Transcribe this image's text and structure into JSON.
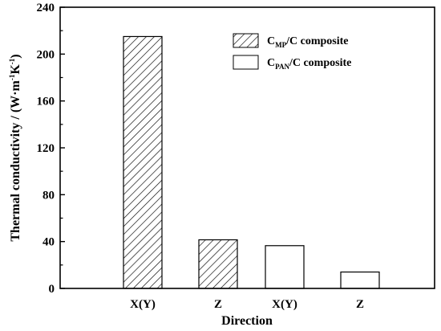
{
  "chart_data": {
    "type": "bar",
    "categories": [
      "X(Y)",
      "Z",
      "X(Y)",
      "Z"
    ],
    "values": [
      215,
      41.5,
      36.5,
      14
    ],
    "bar_series": [
      0,
      0,
      1,
      1
    ],
    "series": [
      {
        "name_main": "C",
        "name_sub": "MP",
        "name_rest": "/C composite",
        "fill": "hatch"
      },
      {
        "name_main": "C",
        "name_sub": "PAN",
        "name_rest": "/C composite",
        "fill": "white"
      }
    ],
    "xlabel": "Direction",
    "ylabel": {
      "main": "Thermal conductivity / (W·m",
      "sup1": "-1",
      "mid": "K",
      "sup2": "-1",
      "end": ")"
    },
    "ylim": [
      0,
      240
    ],
    "yticks": [
      "0",
      "40",
      "80",
      "120",
      "160",
      "200",
      "240"
    ],
    "grid": false,
    "legend_position": "top-right"
  }
}
